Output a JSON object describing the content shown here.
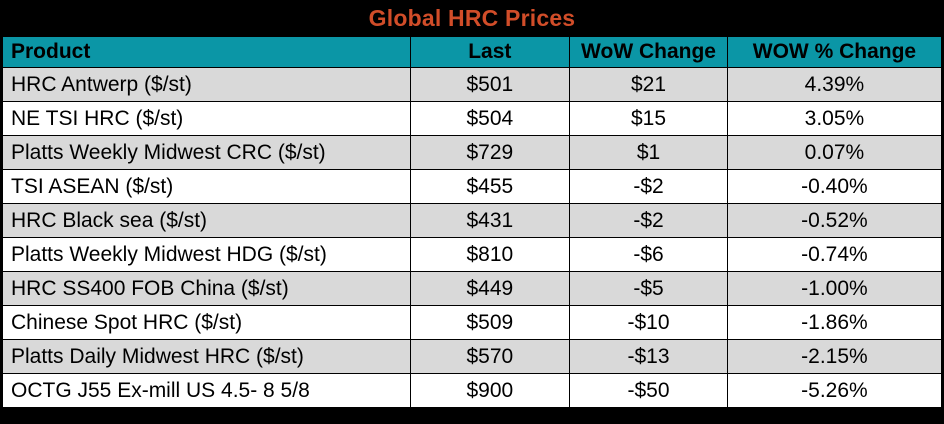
{
  "title": "Global HRC Prices",
  "colors": {
    "title_text": "#D14D29",
    "title_bg": "#000000",
    "header_bg": "#0B96A6",
    "header_text": "#000000",
    "row_alt_bg": "#D9D9D9",
    "row_bg": "#FFFFFF",
    "border": "#000000"
  },
  "table": {
    "columns": [
      "Product",
      "Last",
      "WoW Change",
      "WOW % Change"
    ],
    "rows": [
      [
        "HRC Antwerp ($/st)",
        "$501",
        "$21",
        "4.39%"
      ],
      [
        "NE TSI HRC ($/st)",
        "$504",
        "$15",
        "3.05%"
      ],
      [
        "Platts Weekly Midwest CRC ($/st)",
        "$729",
        "$1",
        "0.07%"
      ],
      [
        "TSI ASEAN ($/st)",
        "$455",
        "-$2",
        "-0.40%"
      ],
      [
        "HRC Black sea ($/st)",
        "$431",
        "-$2",
        "-0.52%"
      ],
      [
        "Platts Weekly Midwest HDG ($/st)",
        "$810",
        "-$6",
        "-0.74%"
      ],
      [
        "HRC SS400 FOB China ($/st)",
        "$449",
        "-$5",
        "-1.00%"
      ],
      [
        "Chinese Spot HRC ($/st)",
        "$509",
        "-$10",
        "-1.86%"
      ],
      [
        "Platts Daily Midwest HRC ($/st)",
        "$570",
        "-$13",
        "-2.15%"
      ],
      [
        "OCTG J55 Ex-mill US 4.5- 8 5/8",
        "$900",
        "-$50",
        "-5.26%"
      ]
    ]
  }
}
